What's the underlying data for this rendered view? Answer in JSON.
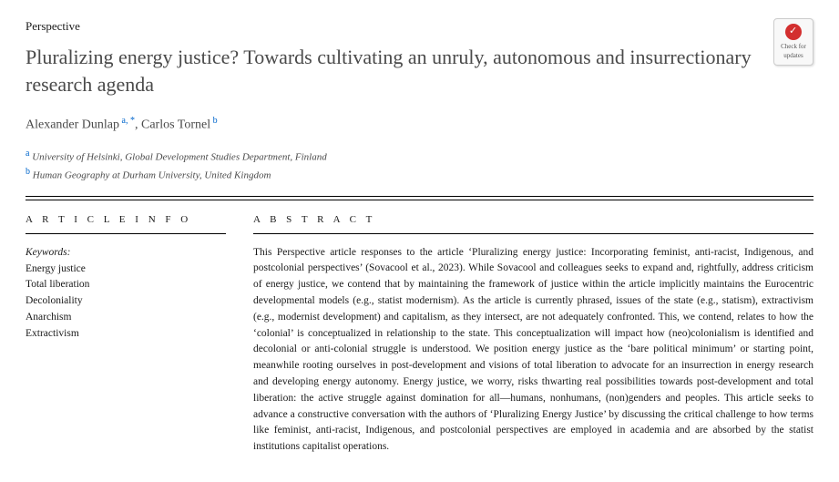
{
  "label": "Perspective",
  "title": "Pluralizing energy justice? Towards cultivating an unruly, autonomous and insurrectionary research agenda",
  "authors": {
    "a1_name": "Alexander Dunlap",
    "a1_sup": "a, *",
    "a2_name": "Carlos Tornel",
    "a2_sup": "b"
  },
  "affiliations": {
    "a_sup": "a",
    "a_text": "University of Helsinki, Global Development Studies Department, Finland",
    "b_sup": "b",
    "b_text": "Human Geography at Durham University, United Kingdom"
  },
  "badge": {
    "line1": "Check for",
    "line2": "updates"
  },
  "article_info_head": "A R T I C L E  I N F O",
  "abstract_head": "A B S T R A C T",
  "keywords_label": "Keywords:",
  "keywords": [
    "Energy justice",
    "Total liberation",
    "Decoloniality",
    "Anarchism",
    "Extractivism"
  ],
  "abstract": "This Perspective article responses to the article ‘Pluralizing energy justice: Incorporating feminist, anti-racist, Indigenous, and postcolonial perspectives’ (Sovacool et al., 2023). While Sovacool and colleagues seeks to expand and, rightfully, address criticism of energy justice, we contend that by maintaining the framework of justice within the article implicitly maintains the Eurocentric developmental models (e.g., statist modernism). As the article is currently phrased, issues of the state (e.g., statism), extractivism (e.g., modernist development) and capitalism, as they intersect, are not adequately confronted. This, we contend, relates to how the ‘colonial’ is conceptualized in relationship to the state. This conceptualization will impact how (neo)colonialism is identified and decolonial or anti-colonial struggle is understood. We position energy justice as the ‘bare political minimum’ or starting point, meanwhile rooting ourselves in post-development and visions of total liberation to advocate for an insurrection in energy research and developing energy autonomy. Energy justice, we worry, risks thwarting real possibilities towards post-development and total liberation: the active struggle against domination for all—humans, nonhumans, (non)genders and peoples. This article seeks to advance a constructive conversation with the authors of ‘Pluralizing Energy Justice’ by discussing the critical challenge to how terms like feminist, anti-racist, Indigenous, and postcolonial perspectives are employed in academia and are absorbed by the statist institutions capitalist operations."
}
